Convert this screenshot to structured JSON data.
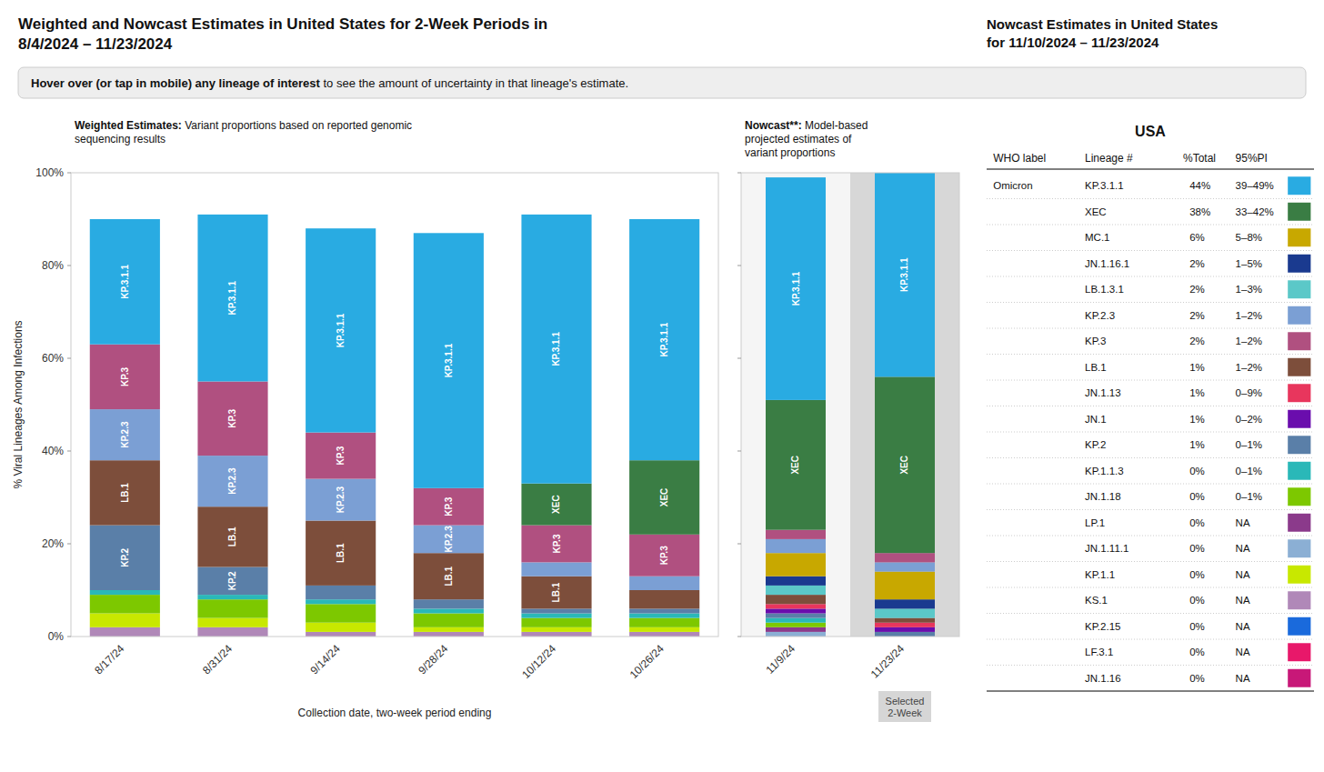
{
  "chart_data": [
    {
      "type": "bar",
      "stacked": true,
      "title": "Weighted and Nowcast Estimates in United States for 2-Week Periods in\n8/4/2024 – 11/23/2024",
      "banner": [
        "Hover over (or tap in mobile) any lineage of interest",
        " to see the amount of uncertainty in that lineage's estimate."
      ],
      "subtitle": "Weighted Estimates: Variant proportions based on reported genomic\nsequencing results",
      "x_label": "Collection date, two-week period ending",
      "y_label": "% Viral Lineages Among Infections",
      "categories": [
        "8/17/24",
        "8/31/24",
        "9/14/24",
        "9/28/24",
        "10/12/24",
        "10/26/24"
      ],
      "series": [
        {
          "name": "JN.1.16",
          "color": "#c81878",
          "values": [
            0,
            0,
            0,
            0,
            0,
            0
          ]
        },
        {
          "name": "LF.3.1",
          "color": "#e8186a",
          "values": [
            0,
            0,
            0,
            0,
            0,
            0
          ]
        },
        {
          "name": "KP.2.15",
          "color": "#1a6adc",
          "values": [
            0,
            0,
            0,
            0,
            0,
            0
          ]
        },
        {
          "name": "KS.1",
          "color": "#b088b8",
          "values": [
            2,
            2,
            1,
            1,
            1,
            1
          ]
        },
        {
          "name": "KP.1.1",
          "color": "#c8e800",
          "values": [
            3,
            2,
            2,
            1,
            1,
            1
          ]
        },
        {
          "name": "JN.1.11.1",
          "color": "#8bafd4",
          "values": [
            0,
            0,
            0,
            0,
            0,
            0
          ]
        },
        {
          "name": "LP.1",
          "color": "#8b3a8b",
          "values": [
            0,
            0,
            0,
            0,
            0,
            0
          ]
        },
        {
          "name": "JN.1.18",
          "color": "#7dc800",
          "values": [
            4,
            4,
            4,
            3,
            2,
            2
          ]
        },
        {
          "name": "KP.1.1.3",
          "color": "#2ab8b8",
          "values": [
            1,
            1,
            1,
            1,
            1,
            1
          ]
        },
        {
          "name": "KP.2",
          "color": "#5a7fa8",
          "values": [
            14,
            6,
            3,
            2,
            1,
            1
          ]
        },
        {
          "name": "JN.1",
          "color": "#6a0dad",
          "values": [
            0,
            0,
            0,
            0,
            0,
            0
          ]
        },
        {
          "name": "JN.1.13",
          "color": "#e8365d",
          "values": [
            0,
            0,
            0,
            0,
            0,
            0
          ]
        },
        {
          "name": "LB.1",
          "color": "#7d4e3b",
          "values": [
            14,
            13,
            14,
            10,
            7,
            4
          ]
        },
        {
          "name": "LB.1.3.1",
          "color": "#5bc8c8",
          "values": [
            0,
            0,
            0,
            0,
            0,
            0
          ]
        },
        {
          "name": "JN.1.16.1",
          "color": "#1a3a8f",
          "values": [
            0,
            0,
            0,
            0,
            0,
            0
          ]
        },
        {
          "name": "MC.1",
          "color": "#c8a800",
          "values": [
            0,
            0,
            0,
            0,
            0,
            0
          ]
        },
        {
          "name": "KP.2.3",
          "color": "#7b9fd4",
          "values": [
            11,
            11,
            9,
            6,
            3,
            3
          ]
        },
        {
          "name": "KP.3",
          "color": "#b05080",
          "values": [
            14,
            16,
            10,
            8,
            8,
            9
          ]
        },
        {
          "name": "XEC",
          "color": "#3a7d44",
          "values": [
            0,
            0,
            0,
            0,
            9,
            16
          ]
        },
        {
          "name": "KP.3.1.1",
          "color": "#29abe2",
          "values": [
            27,
            36,
            44,
            55,
            58,
            52
          ]
        }
      ],
      "ylim": [
        0,
        100
      ],
      "yticks": [
        {
          "value": 0,
          "label": "0%"
        },
        {
          "value": 20,
          "label": "20%"
        },
        {
          "value": 40,
          "label": "40%"
        },
        {
          "value": 60,
          "label": "60%"
        },
        {
          "value": 80,
          "label": "80%"
        },
        {
          "value": 100,
          "label": "100%"
        }
      ],
      "grid": false,
      "annotations": [
        {
          "text": "KP.3.1.1",
          "x": "8/17/24"
        },
        {
          "text": "KP.3.1.1",
          "x": "8/31/24"
        },
        {
          "text": "KP.3.1.1",
          "x": "9/14/24"
        },
        {
          "text": "KP.3.1.1",
          "x": "9/28/24"
        },
        {
          "text": "KP.3.1.1",
          "x": "10/12/24"
        },
        {
          "text": "KP.3.1.1",
          "x": "10/26/24"
        },
        {
          "text": "KP.3",
          "x": "8/17/24"
        },
        {
          "text": "KP.3",
          "x": "8/31/24"
        },
        {
          "text": "KP.3",
          "x": "9/14/24"
        },
        {
          "text": "KP.3",
          "x": "9/28/24"
        },
        {
          "text": "KP.3",
          "x": "10/12/24"
        },
        {
          "text": "KP.3",
          "x": "10/26/24"
        },
        {
          "text": "KP.2.3",
          "x": "8/17/24"
        },
        {
          "text": "KP.2.3",
          "x": "8/31/24"
        },
        {
          "text": "KP.2.3",
          "x": "9/14/24"
        },
        {
          "text": "KP.2.3",
          "x": "9/28/24"
        },
        {
          "text": "LB.1",
          "x": "8/17/24"
        },
        {
          "text": "LB.1",
          "x": "8/31/24"
        },
        {
          "text": "LB.1",
          "x": "9/14/24"
        },
        {
          "text": "LB.1",
          "x": "9/28/24"
        },
        {
          "text": "LB.1",
          "x": "10/12/24"
        },
        {
          "text": "KP.2",
          "x": "8/17/24"
        },
        {
          "text": "KP.2",
          "x": "8/31/24"
        },
        {
          "text": "XEC",
          "x": "10/12/24"
        },
        {
          "text": "XEC",
          "x": "10/26/24"
        }
      ]
    },
    {
      "type": "bar",
      "stacked": true,
      "subtitle": "Nowcast**: Model-based\nprojected estimates of\nvariant proportions",
      "categories": [
        "11/9/24",
        "11/23/24"
      ],
      "series": [
        {
          "name": "JN.1.16",
          "color": "#c81878",
          "values": [
            0,
            0
          ]
        },
        {
          "name": "LF.3.1",
          "color": "#e8186a",
          "values": [
            0,
            0
          ]
        },
        {
          "name": "KP.2.15",
          "color": "#1a6adc",
          "values": [
            0,
            0
          ]
        },
        {
          "name": "KS.1",
          "color": "#b088b8",
          "values": [
            0,
            0
          ]
        },
        {
          "name": "KP.1.1",
          "color": "#c8e800",
          "values": [
            0,
            0
          ]
        },
        {
          "name": "JN.1.11.1",
          "color": "#8bafd4",
          "values": [
            1,
            0
          ]
        },
        {
          "name": "LP.1",
          "color": "#8b3a8b",
          "values": [
            1,
            0
          ]
        },
        {
          "name": "JN.1.18",
          "color": "#7dc800",
          "values": [
            1,
            0
          ]
        },
        {
          "name": "KP.1.1.3",
          "color": "#2ab8b8",
          "values": [
            1,
            0
          ]
        },
        {
          "name": "KP.2",
          "color": "#5a7fa8",
          "values": [
            1,
            1
          ]
        },
        {
          "name": "JN.1",
          "color": "#6a0dad",
          "values": [
            1,
            1
          ]
        },
        {
          "name": "JN.1.13",
          "color": "#e8365d",
          "values": [
            1,
            1
          ]
        },
        {
          "name": "LB.1",
          "color": "#7d4e3b",
          "values": [
            2,
            1
          ]
        },
        {
          "name": "LB.1.3.1",
          "color": "#5bc8c8",
          "values": [
            2,
            2
          ]
        },
        {
          "name": "JN.1.16.1",
          "color": "#1a3a8f",
          "values": [
            2,
            2
          ]
        },
        {
          "name": "MC.1",
          "color": "#c8a800",
          "values": [
            5,
            6
          ]
        },
        {
          "name": "KP.2.3",
          "color": "#7b9fd4",
          "values": [
            3,
            2
          ]
        },
        {
          "name": "KP.3",
          "color": "#b05080",
          "values": [
            2,
            2
          ]
        },
        {
          "name": "XEC",
          "color": "#3a7d44",
          "values": [
            28,
            38
          ]
        },
        {
          "name": "KP.3.1.1",
          "color": "#29abe2",
          "values": [
            48,
            44
          ]
        }
      ],
      "ylim": [
        0,
        100
      ],
      "yticks": [
        0,
        20,
        40,
        60,
        80,
        100
      ],
      "tick_labels": "x",
      "grid": false,
      "annotations": [
        {
          "text": "KP.3.1.1",
          "x": "11/9/24"
        },
        {
          "text": "KP.3.1.1",
          "x": "11/23/24"
        },
        {
          "text": "XEC",
          "x": "11/9/24"
        },
        {
          "text": "XEC",
          "x": "11/23/24"
        },
        {
          "text": "Selected\n2-Week",
          "x": "11/23/24"
        }
      ]
    },
    {
      "type": "table",
      "title": "Nowcast Estimates in United States\nfor 11/10/2024 – 11/23/2024",
      "subtitle": "USA",
      "columns": [
        "WHO label",
        "Lineage #",
        "%Total",
        "95%PI"
      ],
      "group": "Omicron",
      "categories": [
        "KP.3.1.1",
        "XEC",
        "MC.1",
        "JN.1.16.1",
        "LB.1.3.1",
        "KP.2.3",
        "KP.3",
        "LB.1",
        "JN.1.13",
        "JN.1",
        "KP.2",
        "KP.1.1.3",
        "JN.1.18",
        "LP.1",
        "JN.1.11.1",
        "KP.1.1",
        "KS.1",
        "KP.2.15",
        "LF.3.1",
        "JN.1.16"
      ],
      "values": [
        44,
        38,
        6,
        2,
        2,
        2,
        2,
        1,
        1,
        1,
        1,
        0,
        0,
        0,
        0,
        0,
        0,
        0,
        0,
        0
      ],
      "value_labels": [
        "44%",
        "38%",
        "6%",
        "2%",
        "2%",
        "2%",
        "2%",
        "1%",
        "1%",
        "1%",
        "1%",
        "0%",
        "0%",
        "0%",
        "0%",
        "0%",
        "0%",
        "0%",
        "0%",
        "0%"
      ],
      "intervals": [
        [
          39,
          49
        ],
        [
          33,
          42
        ],
        [
          5,
          8
        ],
        [
          1,
          5
        ],
        [
          1,
          3
        ],
        [
          1,
          2
        ],
        [
          1,
          2
        ],
        [
          1,
          2
        ],
        [
          0,
          9
        ],
        [
          0,
          2
        ],
        [
          0,
          1
        ],
        [
          0,
          1
        ],
        [
          0,
          1
        ],
        null,
        null,
        null,
        null,
        null,
        null,
        null
      ],
      "interval_labels": [
        "39–49%",
        "33–42%",
        "5–8%",
        "1–5%",
        "1–3%",
        "1–2%",
        "1–2%",
        "1–2%",
        "0–9%",
        "0–2%",
        "0–1%",
        "0–1%",
        "0–1%",
        "NA",
        "NA",
        "NA",
        "NA",
        "NA",
        "NA",
        "NA"
      ],
      "colors": [
        "#29abe2",
        "#3a7d44",
        "#c8a800",
        "#1a3a8f",
        "#5bc8c8",
        "#7b9fd4",
        "#b05080",
        "#7d4e3b",
        "#e8365d",
        "#6a0dad",
        "#5a7fa8",
        "#2ab8b8",
        "#7dc800",
        "#8b3a8b",
        "#8bafd4",
        "#c8e800",
        "#b088b8",
        "#1a6adc",
        "#e8186a",
        "#c81878"
      ]
    }
  ]
}
